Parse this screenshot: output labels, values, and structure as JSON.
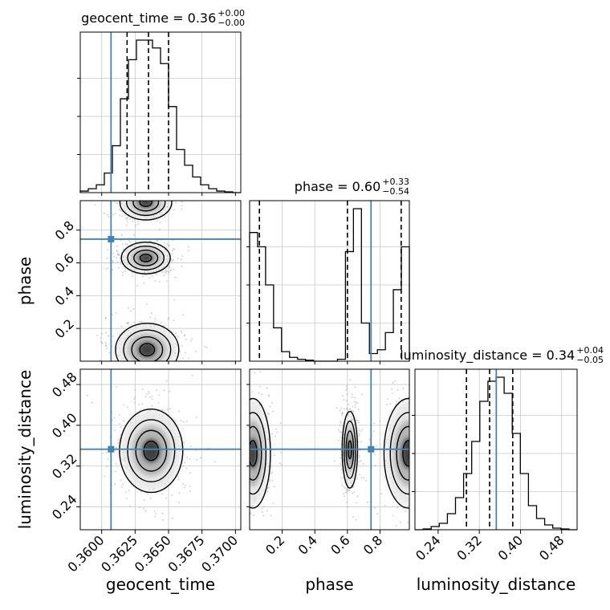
{
  "chart_data": {
    "type": "corner",
    "parameters": [
      "geocent_time",
      "phase",
      "luminosity_distance"
    ],
    "axis_labels": {
      "geocent_time": "geocent_time",
      "phase": "phase",
      "luminosity_distance": "luminosity_distance"
    },
    "ranges": {
      "geocent_time": [
        0.3584,
        0.3704
      ],
      "phase": [
        0.0,
        0.98
      ],
      "luminosity_distance": [
        0.195,
        0.51
      ]
    },
    "ticks": {
      "geocent_time": [
        0.36,
        0.3625,
        0.365,
        0.3675,
        0.37
      ],
      "phase": [
        0.2,
        0.4,
        0.6,
        0.8
      ],
      "luminosity_distance": [
        0.24,
        0.32,
        0.4,
        0.48
      ]
    },
    "tick_labels": {
      "geocent_time": [
        "0.3600",
        "0.3625",
        "0.3650",
        "0.3675",
        "0.3700"
      ],
      "phase": [
        "0.2",
        "0.4",
        "0.6",
        "0.8"
      ],
      "luminosity_distance": [
        "0.24",
        "0.32",
        "0.40",
        "0.48"
      ]
    },
    "truths": {
      "geocent_time": 0.3607,
      "phase": 0.745,
      "luminosity_distance": 0.353
    },
    "titles": {
      "geocent_time": {
        "name": "geocent_time",
        "value": "0.36",
        "plus": "+0.00",
        "minus": "−0.00"
      },
      "phase": {
        "name": "phase",
        "value": "0.60",
        "plus": "+0.33",
        "minus": "−0.54"
      },
      "luminosity_distance": {
        "name": "luminosity_distance",
        "value": "0.34",
        "plus": "+0.04",
        "minus": "−0.05"
      }
    },
    "quantiles": {
      "geocent_time": [
        0.3619,
        0.3635,
        0.365
      ],
      "phase": [
        0.06,
        0.6,
        0.93
      ],
      "luminosity_distance": [
        0.295,
        0.34,
        0.385
      ]
    },
    "histograms": {
      "geocent_time": {
        "edges": [
          0.3584,
          0.359,
          0.3596,
          0.3602,
          0.3608,
          0.3614,
          0.362,
          0.3626,
          0.3632,
          0.3638,
          0.3644,
          0.365,
          0.3656,
          0.3662,
          0.3668,
          0.3674,
          0.368,
          0.3686,
          0.3692,
          0.3698,
          0.3704
        ],
        "counts": [
          2,
          5,
          10,
          25,
          60,
          120,
          170,
          195,
          195,
          185,
          165,
          110,
          55,
          35,
          20,
          10,
          5,
          2,
          1,
          0
        ]
      },
      "phase": {
        "edges": [
          0.0,
          0.049,
          0.098,
          0.147,
          0.196,
          0.245,
          0.294,
          0.343,
          0.392,
          0.441,
          0.49,
          0.539,
          0.588,
          0.637,
          0.686,
          0.735,
          0.784,
          0.833,
          0.882,
          0.931,
          0.98
        ],
        "counts": [
          135,
          120,
          80,
          35,
          10,
          4,
          2,
          1,
          0,
          0,
          0,
          2,
          115,
          160,
          40,
          8,
          12,
          30,
          75,
          120
        ]
      },
      "luminosity_distance": {
        "edges": [
          0.195,
          0.21075,
          0.2265,
          0.24225,
          0.258,
          0.27375,
          0.2895,
          0.30525,
          0.321,
          0.33675,
          0.3525,
          0.36825,
          0.384,
          0.39975,
          0.4155,
          0.43125,
          0.447,
          0.46275,
          0.4785,
          0.49425,
          0.51
        ],
        "counts": [
          0,
          1,
          4,
          8,
          20,
          40,
          70,
          110,
          160,
          185,
          190,
          170,
          120,
          70,
          30,
          14,
          6,
          2,
          1,
          0
        ]
      }
    },
    "colors": {
      "truth": "#4682b4",
      "histogram": "#000000",
      "contour": "#000000",
      "density": "#555555",
      "grid": "#c8c8c8"
    },
    "grid": true
  }
}
